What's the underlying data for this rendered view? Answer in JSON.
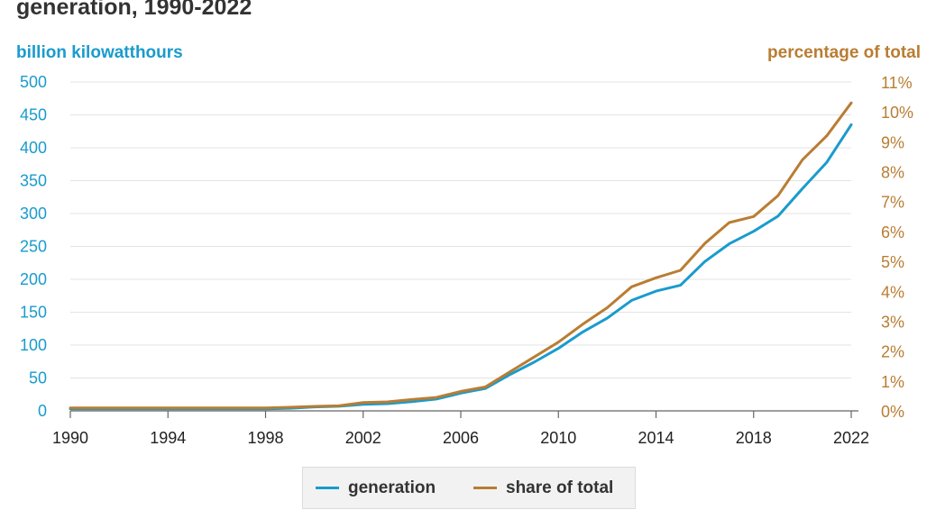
{
  "title": "generation, 1990-2022",
  "chart_data": {
    "type": "line",
    "left_axis_label": "billion kilowatthours",
    "right_axis_label": "percentage of total",
    "x": [
      1990,
      1991,
      1992,
      1993,
      1994,
      1995,
      1996,
      1997,
      1998,
      1999,
      2000,
      2001,
      2002,
      2003,
      2004,
      2005,
      2006,
      2007,
      2008,
      2009,
      2010,
      2011,
      2012,
      2013,
      2014,
      2015,
      2016,
      2017,
      2018,
      2019,
      2020,
      2021,
      2022
    ],
    "x_ticks": [
      "1990",
      "1994",
      "1998",
      "2002",
      "2006",
      "2010",
      "2014",
      "2018",
      "2022"
    ],
    "xlim": [
      1990,
      2022
    ],
    "left_ticks": [
      "0",
      "50",
      "100",
      "150",
      "200",
      "250",
      "300",
      "350",
      "400",
      "450",
      "500"
    ],
    "right_ticks": [
      "0%",
      "1%",
      "2%",
      "3%",
      "4%",
      "5%",
      "6%",
      "7%",
      "8%",
      "9%",
      "10%",
      "11%"
    ],
    "ylim_left": [
      0,
      500
    ],
    "ylim_right": [
      0,
      11
    ],
    "grid": true,
    "legend_position": "bottom-center",
    "series": [
      {
        "name": "generation",
        "axis": "left",
        "color": "#1a9bcd",
        "values": [
          3,
          3,
          3,
          3,
          3,
          3,
          3,
          3,
          3,
          4,
          6,
          7,
          10,
          11,
          14,
          18,
          27,
          34,
          55,
          74,
          95,
          120,
          141,
          168,
          182,
          191,
          227,
          254,
          273,
          296,
          338,
          378,
          435
        ]
      },
      {
        "name": "share of total",
        "axis": "right",
        "color": "#b97d33",
        "values": [
          0.1,
          0.1,
          0.1,
          0.1,
          0.1,
          0.1,
          0.1,
          0.1,
          0.1,
          0.12,
          0.15,
          0.17,
          0.28,
          0.3,
          0.38,
          0.45,
          0.65,
          0.8,
          1.3,
          1.8,
          2.3,
          2.9,
          3.45,
          4.15,
          4.45,
          4.7,
          5.6,
          6.3,
          6.5,
          7.2,
          8.4,
          9.2,
          10.3
        ]
      }
    ]
  },
  "legend": {
    "generation_label": "generation",
    "share_label": "share of total",
    "generation_color": "#1a9bcd",
    "share_color": "#b97d33"
  }
}
